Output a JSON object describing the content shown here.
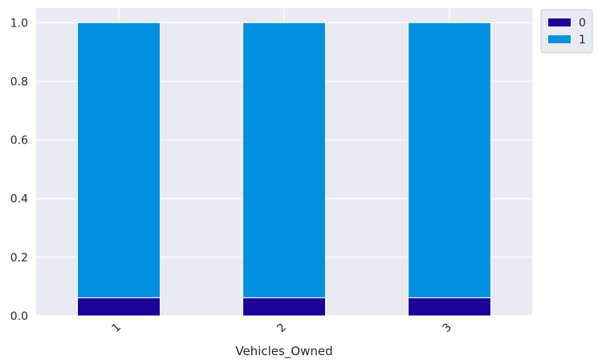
{
  "chart_data": {
    "type": "bar",
    "stacked": true,
    "categories": [
      "1",
      "2",
      "3"
    ],
    "series": [
      {
        "name": "0",
        "values": [
          0.062,
          0.062,
          0.062
        ],
        "color": "#1c0099"
      },
      {
        "name": "1",
        "values": [
          0.938,
          0.938,
          0.938
        ],
        "color": "#0090dd"
      }
    ],
    "xlabel": "Vehicles_Owned",
    "ylabel": "",
    "ylim": [
      0,
      1.05
    ],
    "yticks": [
      0.0,
      0.2,
      0.4,
      0.6,
      0.8,
      1.0
    ],
    "ytick_labels": [
      "0.0",
      "0.2",
      "0.4",
      "0.6",
      "0.8",
      "1.0"
    ],
    "grid": true,
    "legend_position": "outside-top-right",
    "background_color": "#eaeaf2",
    "grid_color": "#ffffff"
  }
}
